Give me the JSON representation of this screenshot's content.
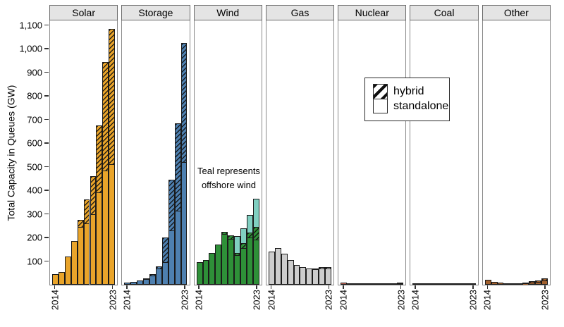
{
  "chart_data": {
    "type": "bar",
    "stacked": true,
    "title": "",
    "ylabel": "Total Capacity in Queues (GW)",
    "ylim": [
      0,
      1120
    ],
    "y_ticks": [
      100,
      200,
      300,
      400,
      500,
      600,
      700,
      800,
      900,
      1000,
      1100
    ],
    "years": [
      2014,
      2015,
      2016,
      2017,
      2018,
      2019,
      2020,
      2021,
      2022,
      2023
    ],
    "x_tick_labels_shown": [
      "2014",
      "2023"
    ],
    "grid": "off",
    "legend_position": "upper-right-overlay",
    "panels": [
      {
        "label": "Solar",
        "color": "#E9A42A",
        "standalone": [
          45,
          55,
          120,
          185,
          245,
          260,
          300,
          390,
          485,
          510
        ],
        "hybrid": [
          0,
          0,
          0,
          0,
          30,
          100,
          160,
          285,
          460,
          575
        ]
      },
      {
        "label": "Storage",
        "color": "#4E80B0",
        "standalone": [
          8,
          12,
          18,
          26,
          40,
          70,
          95,
          230,
          315,
          520
        ],
        "hybrid": [
          0,
          0,
          0,
          2,
          5,
          8,
          105,
          215,
          370,
          505
        ]
      },
      {
        "label": "Wind",
        "color": "#2E9038",
        "offshore_color": "#80CFC1",
        "standalone": [
          95,
          105,
          135,
          170,
          215,
          195,
          125,
          155,
          200,
          190
        ],
        "hybrid": [
          0,
          0,
          0,
          0,
          10,
          15,
          10,
          20,
          20,
          55
        ],
        "offshore": [
          0,
          0,
          0,
          0,
          0,
          0,
          70,
          65,
          75,
          120
        ]
      },
      {
        "label": "Gas",
        "color": "#CDCDCD",
        "standalone": [
          140,
          155,
          130,
          105,
          85,
          75,
          70,
          68,
          70,
          68
        ],
        "hybrid": [
          0,
          0,
          0,
          0,
          0,
          0,
          0,
          2,
          6,
          7
        ]
      },
      {
        "label": "Nuclear",
        "color": "#C96A59",
        "standalone": [
          8,
          6,
          3,
          1,
          1,
          1,
          2,
          2,
          3,
          5
        ],
        "hybrid": [
          0,
          0,
          0,
          0,
          0,
          0,
          0,
          1,
          2,
          3
        ]
      },
      {
        "label": "Coal",
        "color": "#4F4F4F",
        "standalone": [
          3,
          2,
          1,
          0.5,
          0.5,
          0.5,
          0.5,
          0.5,
          0.5,
          1
        ],
        "hybrid": [
          0,
          0,
          0,
          0,
          0,
          0,
          0,
          0,
          0,
          1
        ]
      },
      {
        "label": "Other",
        "color": "#A2602D",
        "standalone": [
          22,
          12,
          8,
          6,
          5,
          6,
          8,
          10,
          12,
          18
        ],
        "hybrid": [
          0,
          0,
          0,
          0,
          0,
          0,
          2,
          4,
          5,
          8
        ]
      }
    ],
    "legend": {
      "items": [
        {
          "label": "hybrid",
          "pattern": "hatched"
        },
        {
          "label": "standalone",
          "pattern": "solid-white"
        }
      ]
    },
    "annotation": {
      "line1": "Teal represents",
      "line2": "offshore wind"
    }
  }
}
